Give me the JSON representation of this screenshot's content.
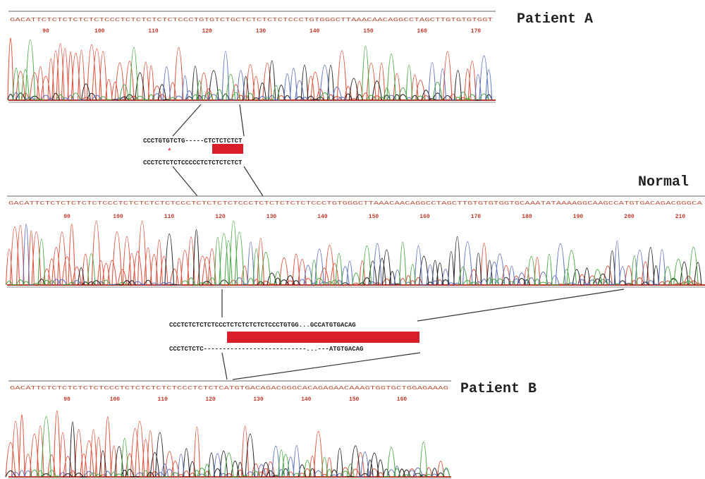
{
  "panels": [
    {
      "label": "Patient A",
      "sequence": "GACATTCTCTCTCTCTCTCCCTCTCTCTCTCTCCCTGTGTCTGCTCTCTCTCTCCCTGTGGGCTTAAACAACAGGCCTAGCTTGTGTGTGGT",
      "positions": [
        90,
        100,
        110,
        120,
        130,
        140,
        150,
        160,
        170
      ]
    },
    {
      "label": "Normal",
      "sequence": "GACATTCTCTCTCTCTCTCCCTCTCTCTCTCTCCCTCTCTCTCTCCCTCTCTCTCTCTCCCTGTGGGCTTAAACAACAGGCCTAGCTTGTGTGTGGTGCAAATATAAAAGGCAAGCCATGTGACAGACGGGCA",
      "positions": [
        90,
        100,
        110,
        120,
        130,
        140,
        150,
        160,
        170,
        180,
        190,
        200,
        210
      ]
    },
    {
      "label": "Patient B",
      "sequence": "GACATTCTCTCTCTCTCTCCCTCTCTCTCTCTCCCTCTCTCATGTGACAGACGGGCACAGAGAACAAAGTGGTGCTGGAGAAAG",
      "positions": [
        90,
        100,
        110,
        120,
        130,
        140,
        150,
        160
      ]
    }
  ],
  "alignments": [
    {
      "top": "CCCTGTGTCTG-----CTCTCTCTCT",
      "marker": "*",
      "bottom": "CCCTCTCTCTCCCCCTCTCTCTCTCT"
    },
    {
      "top": "CCCTCTCTCTCTCCCTCTCTCTCTCTCCCTGTGG...GCCATGTGACAG",
      "bottom": "CCCTCTCTC---------------------------...---ATGTGACAG"
    }
  ]
}
